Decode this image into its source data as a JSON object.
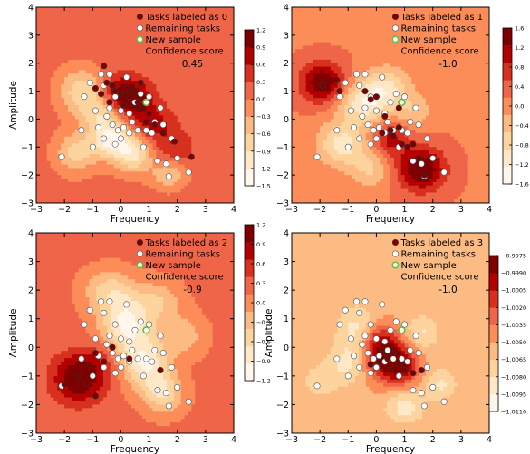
{
  "figure": {
    "background": "#ffffff"
  },
  "chart_data": [
    {
      "type": "contour",
      "xlabel": "Frequency",
      "ylabel": "Amplitude",
      "xlim": [
        -3,
        4
      ],
      "ylim": [
        -3,
        4
      ],
      "xticks": [
        "−3",
        "−2",
        "−1",
        "0",
        "1",
        "2",
        "3",
        "4"
      ],
      "yticks": [
        "−3",
        "−2",
        "−1",
        "0",
        "1",
        "2",
        "3",
        "4"
      ],
      "legend": {
        "placement": "top-right",
        "items": [
          "Tasks labeled as 0",
          "Remaining tasks",
          "New sample",
          "Confidence score"
        ],
        "score": "0.45"
      },
      "colorbar": {
        "ticks": [
          "1.2",
          "0.9",
          "0.6",
          "0.3",
          "0.0",
          "−0.3",
          "−0.6",
          "−0.9",
          "−1.2",
          "−1.5"
        ],
        "min": -1.5,
        "max": 1.2
      },
      "field": {
        "base": 0.1,
        "bumps": [
          {
            "x": 0.0,
            "y": 0.8,
            "amp": 1.15,
            "sx": 0.55,
            "sy": 0.5
          },
          {
            "x": 0.6,
            "y": 0.6,
            "amp": 0.5,
            "sx": 0.5,
            "sy": 0.5
          },
          {
            "x": 1.2,
            "y": -0.2,
            "amp": 0.55,
            "sx": 0.55,
            "sy": 0.45
          },
          {
            "x": 1.9,
            "y": -1.0,
            "amp": 0.45,
            "sx": 0.5,
            "sy": 0.4
          },
          {
            "x": -0.6,
            "y": 0.2,
            "amp": -1.0,
            "sx": 0.55,
            "sy": 0.55
          },
          {
            "x": -0.3,
            "y": -0.8,
            "amp": -1.3,
            "sx": 0.5,
            "sy": 0.45
          },
          {
            "x": 0.5,
            "y": -1.3,
            "amp": -1.0,
            "sx": 0.45,
            "sy": 0.45
          },
          {
            "x": -1.4,
            "y": 1.0,
            "amp": -0.9,
            "sx": 0.55,
            "sy": 0.55
          },
          {
            "x": -1.6,
            "y": -1.2,
            "amp": -0.8,
            "sx": 0.5,
            "sy": 0.5
          },
          {
            "x": 1.7,
            "y": -2.0,
            "amp": -0.7,
            "sx": 0.4,
            "sy": 0.35
          }
        ]
      },
      "labeled_points": [
        [
          -0.9,
          1.1
        ],
        [
          -0.7,
          0.9
        ],
        [
          -0.5,
          1.3
        ],
        [
          -0.3,
          1.2
        ],
        [
          -0.2,
          1.0
        ],
        [
          0.0,
          0.9
        ],
        [
          0.2,
          1.1
        ],
        [
          0.3,
          0.8
        ],
        [
          0.5,
          1.0
        ],
        [
          -0.4,
          0.6
        ],
        [
          0.1,
          0.5
        ],
        [
          0.6,
          0.6
        ],
        [
          0.8,
          0.4
        ],
        [
          1.0,
          0.2
        ],
        [
          0.9,
          -0.1
        ],
        [
          1.2,
          -0.2
        ],
        [
          1.5,
          -0.5
        ],
        [
          1.9,
          -0.8
        ],
        [
          2.5,
          -1.35
        ],
        [
          -0.6,
          1.9
        ],
        [
          0.7,
          1.3
        ]
      ]
    },
    {
      "type": "contour",
      "xlabel": "Frequency",
      "ylabel": "",
      "xlim": [
        -3,
        4
      ],
      "ylim": [
        -3,
        4
      ],
      "xticks": [
        "−3",
        "−2",
        "−1",
        "0",
        "1",
        "2",
        "3",
        "4"
      ],
      "yticks": [
        "−3",
        "−2",
        "−1",
        "0",
        "1",
        "2",
        "3",
        "4"
      ],
      "legend": {
        "placement": "top-right",
        "items": [
          "Tasks labeled as 1",
          "Remaining tasks",
          "New sample",
          "Confidence score"
        ],
        "score": "-1.0"
      },
      "colorbar": {
        "ticks": [
          "1.6",
          "1.2",
          "0.8",
          "0.4",
          "0.0",
          "−0.4",
          "−0.8",
          "−1.2",
          "−1.6"
        ],
        "min": -1.6,
        "max": 1.6
      },
      "field": {
        "base": 0.15,
        "bumps": [
          {
            "x": -1.9,
            "y": 1.3,
            "amp": 1.5,
            "sx": 0.55,
            "sy": 0.5
          },
          {
            "x": 1.6,
            "y": -1.8,
            "amp": 1.5,
            "sx": 0.6,
            "sy": 0.55
          },
          {
            "x": 0.5,
            "y": -0.7,
            "amp": 0.9,
            "sx": 0.45,
            "sy": 0.45
          },
          {
            "x": -0.4,
            "y": 0.6,
            "amp": -1.3,
            "sx": 0.65,
            "sy": 0.55
          },
          {
            "x": 0.4,
            "y": 1.2,
            "amp": -0.9,
            "sx": 0.55,
            "sy": 0.5
          },
          {
            "x": -1.2,
            "y": -0.9,
            "amp": -1.2,
            "sx": 0.6,
            "sy": 0.55
          },
          {
            "x": 1.3,
            "y": 0.3,
            "amp": -0.6,
            "sx": 0.5,
            "sy": 0.45
          },
          {
            "x": -0.2,
            "y": -1.8,
            "amp": -0.7,
            "sx": 0.5,
            "sy": 0.45
          }
        ]
      },
      "labeled_points": [
        [
          -1.9,
          1.2
        ],
        [
          -1.4,
          1.4
        ],
        [
          -1.3,
          1.0
        ],
        [
          -0.4,
          1.0
        ],
        [
          -0.2,
          0.7
        ],
        [
          0.0,
          0.8
        ],
        [
          0.3,
          0.1
        ],
        [
          0.5,
          -0.4
        ],
        [
          0.6,
          -0.6
        ],
        [
          0.9,
          -0.9
        ],
        [
          1.1,
          -1.0
        ],
        [
          1.3,
          -0.9
        ],
        [
          1.5,
          -1.4
        ],
        [
          1.7,
          -2.0
        ],
        [
          0.8,
          -0.3
        ],
        [
          0.2,
          -0.5
        ],
        [
          0.8,
          0.4
        ]
      ]
    },
    {
      "type": "contour",
      "xlabel": "Frequency",
      "ylabel": "Amplitude",
      "xlim": [
        -3,
        4
      ],
      "ylim": [
        -3,
        4
      ],
      "xticks": [
        "−3",
        "−2",
        "−1",
        "0",
        "1",
        "2",
        "3",
        "4"
      ],
      "yticks": [
        "−3",
        "−2",
        "−1",
        "0",
        "1",
        "2",
        "3",
        "4"
      ],
      "legend": {
        "placement": "top-right",
        "items": [
          "Tasks labeled as 2",
          "Remaining tasks",
          "New sample",
          "Confidence score"
        ],
        "score": "-0.9"
      },
      "colorbar": {
        "ticks": [
          "1.2",
          "0.9",
          "0.6",
          "0.3",
          "0.0",
          "−0.3",
          "−0.6",
          "−0.9",
          "−1.2"
        ],
        "min": -1.2,
        "max": 1.2
      },
      "field": {
        "base": 0.2,
        "bumps": [
          {
            "x": -1.5,
            "y": -1.1,
            "amp": 1.05,
            "sx": 0.65,
            "sy": 0.6
          },
          {
            "x": -0.7,
            "y": -0.4,
            "amp": 0.35,
            "sx": 0.5,
            "sy": 0.45
          },
          {
            "x": 0.2,
            "y": 0.8,
            "amp": -1.2,
            "sx": 0.65,
            "sy": 0.8
          },
          {
            "x": 0.9,
            "y": -0.6,
            "amp": -1.0,
            "sx": 0.55,
            "sy": 0.6
          },
          {
            "x": 1.5,
            "y": -1.6,
            "amp": -0.8,
            "sx": 0.5,
            "sy": 0.5
          },
          {
            "x": -0.5,
            "y": 2.0,
            "amp": -0.6,
            "sx": 0.6,
            "sy": 0.5
          },
          {
            "x": 2.2,
            "y": 0.4,
            "amp": -0.5,
            "sx": 0.55,
            "sy": 0.5
          },
          {
            "x": 1.4,
            "y": 1.6,
            "amp": -0.5,
            "sx": 0.55,
            "sy": 0.5
          }
        ]
      },
      "labeled_points": [
        [
          -2.0,
          -1.3
        ],
        [
          -1.5,
          -1.0
        ],
        [
          -1.2,
          -1.3
        ],
        [
          -0.9,
          -1.7
        ],
        [
          -1.1,
          -0.6
        ],
        [
          -0.9,
          -0.2
        ],
        [
          -0.6,
          -0.5
        ],
        [
          -0.3,
          0.0
        ],
        [
          0.3,
          -0.4
        ],
        [
          1.4,
          -0.8
        ]
      ]
    },
    {
      "type": "contour",
      "xlabel": "Frequency",
      "ylabel": "Amplitude",
      "xlim": [
        -3,
        4
      ],
      "ylim": [
        -3,
        4
      ],
      "xticks": [
        "−3",
        "−2",
        "−1",
        "0",
        "1",
        "2",
        "3",
        "4"
      ],
      "yticks": [
        "−3",
        "−2",
        "−1",
        "0",
        "1",
        "2",
        "3",
        "4"
      ],
      "legend": {
        "placement": "top-right",
        "items": [
          "Tasks labeled as 3",
          "Remaining tasks",
          "New sample",
          "Confidence score"
        ],
        "score": "-1.0"
      },
      "colorbar": {
        "ticks": [
          "−0.9975",
          "−0.9990",
          "−1.0005",
          "−1.0020",
          "−1.0035",
          "−1.0050",
          "−1.0065",
          "−1.0080",
          "−1.0095",
          "−1.0110"
        ],
        "min": -1.011,
        "max": -0.9975
      },
      "field": {
        "base": -1.0052,
        "bumps": [
          {
            "x": 0.3,
            "y": -0.3,
            "amp": 0.0072,
            "sx": 0.55,
            "sy": 0.55
          },
          {
            "x": 0.9,
            "y": -0.7,
            "amp": 0.0045,
            "sx": 0.45,
            "sy": 0.45
          },
          {
            "x": 0.0,
            "y": 0.4,
            "amp": 0.0025,
            "sx": 0.4,
            "sy": 0.35
          },
          {
            "x": -0.7,
            "y": 0.6,
            "amp": -0.0035,
            "sx": 0.5,
            "sy": 0.6
          },
          {
            "x": -1.0,
            "y": -0.6,
            "amp": -0.003,
            "sx": 0.5,
            "sy": 0.5
          },
          {
            "x": 1.6,
            "y": 0.5,
            "amp": -0.003,
            "sx": 0.45,
            "sy": 0.45
          },
          {
            "x": 1.0,
            "y": -2.1,
            "amp": -0.0035,
            "sx": 0.5,
            "sy": 0.4
          },
          {
            "x": 2.3,
            "y": -1.3,
            "amp": -0.003,
            "sx": 0.4,
            "sy": 0.4
          },
          {
            "x": -2.0,
            "y": -1.2,
            "amp": -0.002,
            "sx": 0.5,
            "sy": 0.5
          }
        ]
      },
      "labeled_points": [
        [
          0.2,
          -0.1
        ],
        [
          0.4,
          -0.4
        ],
        [
          0.1,
          -0.5
        ],
        [
          0.6,
          -0.2
        ],
        [
          0.8,
          -0.6
        ],
        [
          1.0,
          -0.8
        ],
        [
          1.3,
          -0.9
        ],
        [
          0.5,
          -0.8
        ],
        [
          -0.2,
          -0.6
        ],
        [
          1.6,
          -0.8
        ]
      ]
    }
  ],
  "remaining_tasks": [
    [
      -2.1,
      -1.35
    ],
    [
      -1.3,
      0.8
    ],
    [
      -1.1,
      1.3
    ],
    [
      -1.0,
      -1.0
    ],
    [
      -0.9,
      0.3
    ],
    [
      -0.8,
      -0.3
    ],
    [
      -0.7,
      1.6
    ],
    [
      -0.6,
      -0.7
    ],
    [
      -0.5,
      0.1
    ],
    [
      -0.4,
      1.6
    ],
    [
      -0.3,
      -0.2
    ],
    [
      -0.2,
      -0.9
    ],
    [
      -0.1,
      -0.4
    ],
    [
      0.0,
      0.3
    ],
    [
      0.1,
      -0.3
    ],
    [
      0.2,
      1.5
    ],
    [
      0.3,
      -0.5
    ],
    [
      0.4,
      -0.1
    ],
    [
      0.5,
      0.6
    ],
    [
      0.6,
      -0.4
    ],
    [
      0.7,
      0.9
    ],
    [
      0.8,
      -1.0
    ],
    [
      0.9,
      -0.4
    ],
    [
      1.0,
      0.8
    ],
    [
      1.1,
      -0.5
    ],
    [
      1.2,
      -0.1
    ],
    [
      1.3,
      -1.5
    ],
    [
      1.4,
      0.4
    ],
    [
      1.5,
      -0.2
    ],
    [
      1.6,
      -1.6
    ],
    [
      1.8,
      -0.7
    ],
    [
      2.0,
      -1.4
    ],
    [
      2.4,
      -1.9
    ],
    [
      -0.4,
      0.4
    ],
    [
      0.0,
      -0.7
    ],
    [
      -0.6,
      1.2
    ],
    [
      -0.2,
      0.8
    ],
    [
      0.3,
      0.2
    ],
    [
      1.7,
      -2.05
    ],
    [
      -1.4,
      -0.4
    ]
  ],
  "new_sample": [
    0.9,
    0.6
  ],
  "colors": {
    "labeled_point": "#7f0000",
    "remaining_point": "#ffffff",
    "new_sample_edge": "#5fbf3f",
    "new_sample_fill": "#ffffff",
    "colormap": [
      "#fff7ec",
      "#fee8c8",
      "#fdd49e",
      "#fdbb84",
      "#fc8d59",
      "#ef6548",
      "#d7301f",
      "#b30000",
      "#7f0000"
    ]
  }
}
